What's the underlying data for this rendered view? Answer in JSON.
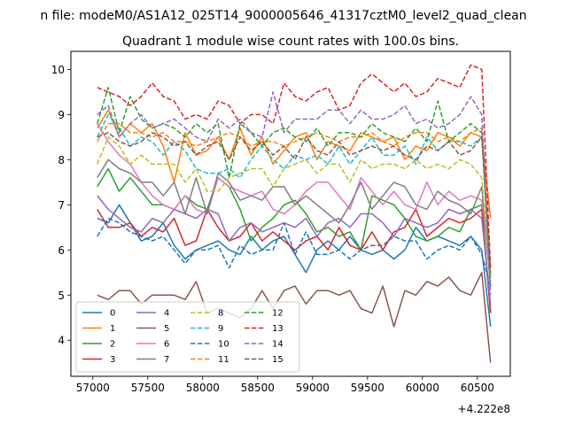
{
  "suptitle": "n file: modeM0/AS1A12_025T14_9000005646_41317cztM0_level2_quad_clean",
  "chart_data": {
    "type": "line",
    "title": "Quadrant 1 module wise count rates with 100.0s bins.",
    "xlabel": "",
    "ylabel": "",
    "x_offset_label": "+4.222e8",
    "x_ticks": [
      57000,
      57500,
      58000,
      58500,
      59000,
      59500,
      60000,
      60500
    ],
    "y_ticks": [
      4,
      5,
      6,
      7,
      8,
      9,
      10
    ],
    "xlim": [
      56800,
      60800
    ],
    "ylim": [
      3.2,
      10.4
    ],
    "grid": false,
    "legend_position": "lower-left",
    "x": [
      57040,
      57140,
      57240,
      57340,
      57440,
      57540,
      57640,
      57740,
      57840,
      57940,
      58040,
      58140,
      58240,
      58340,
      58440,
      58540,
      58640,
      58740,
      58840,
      58940,
      59040,
      59140,
      59240,
      59340,
      59440,
      59540,
      59640,
      59740,
      59840,
      59940,
      60040,
      60140,
      60240,
      60340,
      60440,
      60540,
      60620
    ],
    "series": [
      {
        "name": "0",
        "color": "#1f77b4",
        "dash": "solid",
        "values": [
          6.7,
          6.6,
          7.0,
          6.6,
          6.2,
          6.3,
          6.6,
          6.1,
          5.8,
          6.0,
          6.1,
          6.2,
          6.0,
          5.9,
          6.3,
          6.0,
          6.2,
          6.3,
          5.9,
          5.5,
          6.0,
          6.2,
          6.0,
          6.3,
          6.0,
          5.9,
          6.0,
          5.8,
          6.0,
          6.5,
          6.2,
          6.3,
          6.2,
          6.1,
          6.3,
          6.0,
          4.3
        ]
      },
      {
        "name": "1",
        "color": "#ff7f0e",
        "dash": "solid",
        "values": [
          8.7,
          9.1,
          8.5,
          8.8,
          8.6,
          8.8,
          8.3,
          7.5,
          8.6,
          8.1,
          8.2,
          8.5,
          8.0,
          8.7,
          8.1,
          8.5,
          7.9,
          8.2,
          8.5,
          8.6,
          8.0,
          8.4,
          8.3,
          8.2,
          8.6,
          8.5,
          8.4,
          8.5,
          8.0,
          8.3,
          8.2,
          8.6,
          8.5,
          8.3,
          8.6,
          8.5,
          6.7
        ]
      },
      {
        "name": "2",
        "color": "#2ca02c",
        "dash": "solid",
        "values": [
          7.4,
          7.8,
          7.3,
          7.6,
          7.3,
          7.0,
          7.0,
          6.9,
          7.2,
          7.0,
          6.9,
          7.6,
          7.4,
          6.9,
          6.2,
          6.5,
          6.7,
          7.0,
          7.1,
          6.8,
          6.4,
          6.5,
          6.3,
          6.4,
          6.0,
          7.2,
          7.1,
          7.0,
          6.7,
          6.3,
          6.2,
          6.3,
          6.5,
          6.4,
          6.9,
          7.0,
          4.6
        ]
      },
      {
        "name": "3",
        "color": "#d62728",
        "dash": "solid",
        "values": [
          6.9,
          6.5,
          6.5,
          6.6,
          6.3,
          6.5,
          6.4,
          6.7,
          6.1,
          6.2,
          6.9,
          6.5,
          6.2,
          6.3,
          6.6,
          6.2,
          6.4,
          6.2,
          6.0,
          6.2,
          6.3,
          6.0,
          6.5,
          6.1,
          6.0,
          6.4,
          6.0,
          6.4,
          6.5,
          6.9,
          6.3,
          6.5,
          6.7,
          6.6,
          6.7,
          6.9,
          4.6
        ]
      },
      {
        "name": "4",
        "color": "#9467bd",
        "dash": "solid",
        "values": [
          7.2,
          6.9,
          6.7,
          6.5,
          6.4,
          6.7,
          6.6,
          6.9,
          6.8,
          6.7,
          6.9,
          6.8,
          6.2,
          6.5,
          6.6,
          6.4,
          6.5,
          6.6,
          6.5,
          6.7,
          6.3,
          6.6,
          6.7,
          6.5,
          6.8,
          6.8,
          6.6,
          6.3,
          6.7,
          6.6,
          6.5,
          6.6,
          6.9,
          6.8,
          6.9,
          6.7,
          4.8
        ]
      },
      {
        "name": "5",
        "color": "#8c564b",
        "dash": "solid",
        "values": [
          5.0,
          4.9,
          5.1,
          5.1,
          4.8,
          5.0,
          5.0,
          5.0,
          4.9,
          5.3,
          4.6,
          4.7,
          4.6,
          4.5,
          4.7,
          5.1,
          4.7,
          5.1,
          5.2,
          4.8,
          5.1,
          5.1,
          5.0,
          5.1,
          4.7,
          4.6,
          5.2,
          4.3,
          5.1,
          5.0,
          5.3,
          5.2,
          5.4,
          5.1,
          5.0,
          5.5,
          3.5
        ]
      },
      {
        "name": "6",
        "color": "#e377c2",
        "dash": "solid",
        "values": [
          8.8,
          8.4,
          8.1,
          7.9,
          7.5,
          7.2,
          7.0,
          6.9,
          7.2,
          6.9,
          6.8,
          7.6,
          7.4,
          7.3,
          7.2,
          7.3,
          6.9,
          6.8,
          7.0,
          7.3,
          7.5,
          7.5,
          7.2,
          6.9,
          7.6,
          7.3,
          7.0,
          7.3,
          7.0,
          6.9,
          7.5,
          7.0,
          7.3,
          7.1,
          7.2,
          7.1,
          5.5
        ]
      },
      {
        "name": "7",
        "color": "#7f7f7f",
        "dash": "solid",
        "values": [
          7.6,
          8.0,
          7.8,
          7.7,
          7.5,
          7.5,
          7.2,
          7.5,
          6.8,
          7.6,
          6.8,
          7.7,
          7.5,
          7.1,
          7.2,
          7.1,
          7.4,
          7.4,
          7.0,
          7.2,
          7.0,
          6.8,
          6.6,
          7.0,
          7.5,
          6.9,
          7.2,
          7.5,
          7.4,
          7.0,
          6.9,
          7.3,
          7.1,
          7.0,
          6.8,
          7.4,
          5.2
        ]
      },
      {
        "name": "8",
        "color": "#bcbd22",
        "dash": "dashed",
        "values": [
          7.9,
          8.5,
          8.3,
          7.9,
          8.1,
          7.9,
          7.9,
          7.9,
          7.5,
          7.8,
          7.3,
          7.3,
          7.6,
          7.7,
          7.8,
          7.8,
          7.4,
          7.8,
          7.9,
          8.0,
          7.7,
          7.9,
          7.9,
          7.5,
          8.0,
          7.8,
          7.9,
          7.9,
          7.8,
          8.0,
          7.8,
          7.9,
          7.8,
          8.0,
          7.9,
          7.6,
          5.3
        ]
      },
      {
        "name": "9",
        "color": "#17becf",
        "dash": "dashed",
        "values": [
          8.5,
          9.0,
          8.7,
          8.3,
          8.5,
          8.4,
          8.1,
          8.4,
          8.2,
          7.8,
          7.7,
          7.7,
          7.8,
          7.6,
          8.0,
          8.3,
          8.0,
          7.8,
          8.1,
          8.0,
          8.1,
          7.9,
          8.3,
          7.9,
          8.2,
          8.5,
          8.1,
          8.1,
          8.3,
          7.9,
          8.5,
          8.2,
          8.4,
          8.4,
          8.3,
          8.5,
          5.3
        ]
      },
      {
        "name": "10",
        "color": "#1f77b4",
        "dash": "dashed",
        "values": [
          6.3,
          6.7,
          6.6,
          6.4,
          6.3,
          6.2,
          6.3,
          6.0,
          5.7,
          6.0,
          6.0,
          6.1,
          5.6,
          6.1,
          5.9,
          6.0,
          6.0,
          6.6,
          5.9,
          6.4,
          5.9,
          5.9,
          6.0,
          5.8,
          6.0,
          6.1,
          6.1,
          6.3,
          6.2,
          6.2,
          5.8,
          6.0,
          6.1,
          6.0,
          6.3,
          5.9,
          5.2
        ]
      },
      {
        "name": "11",
        "color": "#ff7f0e",
        "dash": "dashed",
        "values": [
          8.4,
          8.8,
          8.8,
          8.6,
          8.6,
          8.5,
          8.6,
          8.4,
          8.4,
          8.3,
          8.4,
          8.5,
          8.6,
          8.5,
          8.3,
          8.4,
          8.4,
          8.3,
          8.4,
          8.5,
          8.6,
          8.5,
          8.4,
          8.5,
          8.5,
          8.6,
          8.4,
          8.3,
          8.5,
          8.6,
          8.6,
          8.4,
          8.5,
          8.4,
          8.6,
          8.7,
          5.4
        ]
      },
      {
        "name": "12",
        "color": "#2ca02c",
        "dash": "dashed",
        "values": [
          8.8,
          9.6,
          8.6,
          9.4,
          8.9,
          8.7,
          8.8,
          8.7,
          8.5,
          8.8,
          8.6,
          8.8,
          7.6,
          8.8,
          8.6,
          8.3,
          8.6,
          8.7,
          8.5,
          8.4,
          8.7,
          8.3,
          8.6,
          8.6,
          8.5,
          8.8,
          8.6,
          8.5,
          8.4,
          8.7,
          8.4,
          9.3,
          8.4,
          8.6,
          8.8,
          8.6,
          5.4
        ]
      },
      {
        "name": "13",
        "color": "#d62728",
        "dash": "dashed",
        "values": [
          9.6,
          9.5,
          9.4,
          9.2,
          9.4,
          9.7,
          9.4,
          9.3,
          8.9,
          9.0,
          8.9,
          9.3,
          9.2,
          8.8,
          9.0,
          9.0,
          8.8,
          9.7,
          9.4,
          9.3,
          9.5,
          9.6,
          9.1,
          9.2,
          9.7,
          9.9,
          9.7,
          9.5,
          9.7,
          9.4,
          9.5,
          9.8,
          9.7,
          9.6,
          10.1,
          10.0,
          5.6
        ]
      },
      {
        "name": "14",
        "color": "#9467bd",
        "dash": "dashed",
        "values": [
          9.0,
          9.2,
          8.5,
          8.8,
          9.0,
          8.7,
          8.8,
          8.9,
          8.7,
          8.5,
          8.4,
          8.9,
          8.7,
          8.9,
          8.6,
          8.5,
          9.5,
          8.6,
          8.9,
          8.9,
          8.9,
          9.1,
          9.1,
          8.8,
          9.1,
          8.9,
          8.9,
          9.0,
          9.2,
          8.8,
          8.9,
          8.7,
          8.8,
          9.0,
          9.4,
          9.0,
          5.0
        ]
      },
      {
        "name": "15",
        "color": "#8c564b",
        "dash": "dashed",
        "values": [
          8.5,
          8.6,
          8.4,
          8.3,
          8.4,
          8.6,
          8.5,
          8.3,
          8.4,
          8.1,
          8.3,
          8.4,
          8.0,
          8.5,
          8.2,
          8.4,
          8.1,
          8.3,
          8.0,
          8.5,
          8.2,
          8.1,
          8.4,
          8.1,
          8.2,
          8.3,
          8.2,
          8.3,
          8.1,
          8.0,
          8.3,
          8.2,
          8.4,
          8.1,
          8.2,
          8.5,
          5.6
        ]
      }
    ]
  }
}
